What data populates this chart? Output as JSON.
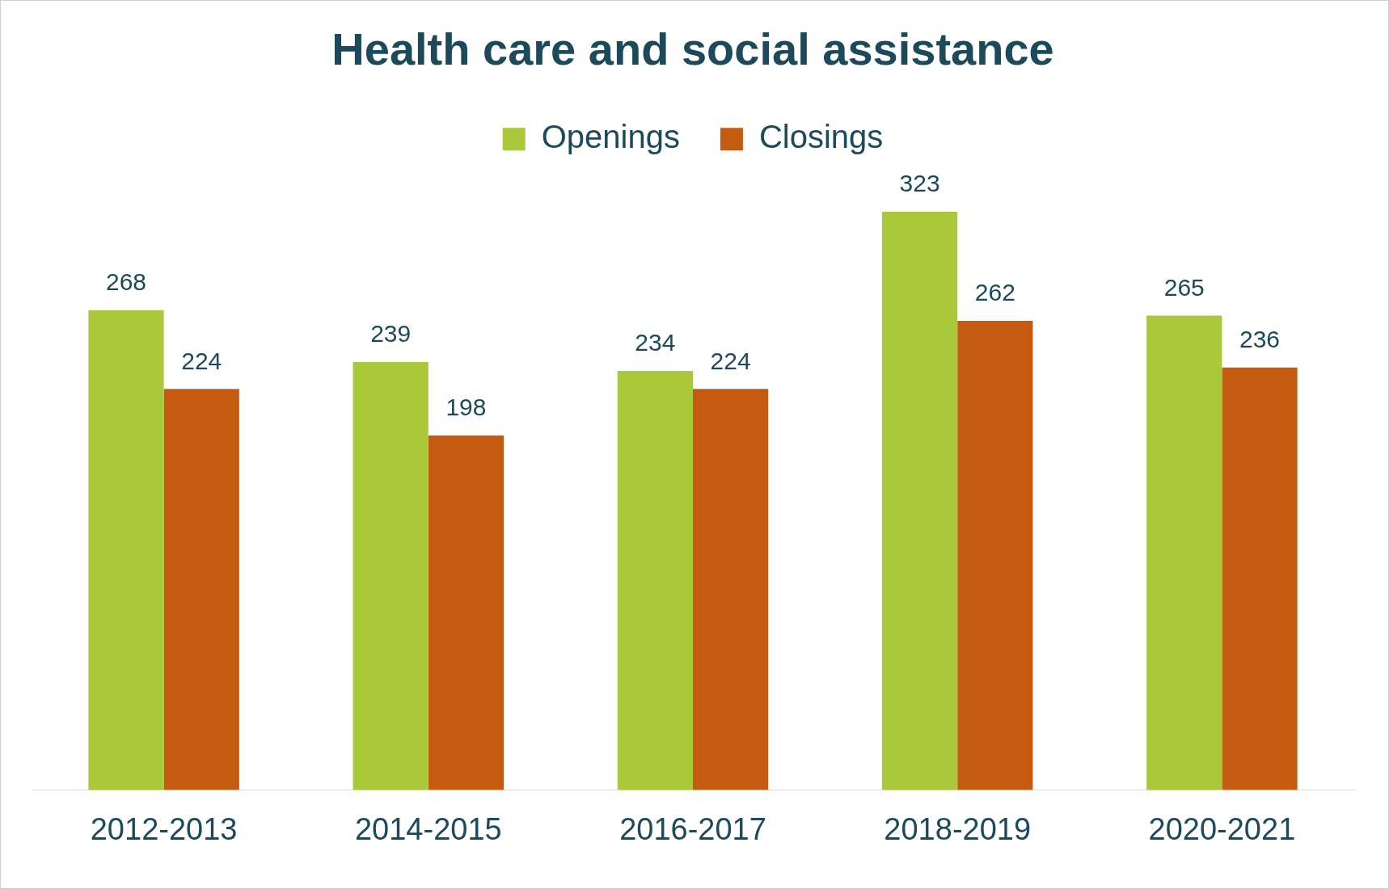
{
  "chart_data": {
    "type": "bar",
    "title": "Health care and social assistance",
    "categories": [
      "2012-2013",
      "2014-2015",
      "2016-2017",
      "2018-2019",
      "2020-2021"
    ],
    "series": [
      {
        "name": "Openings",
        "color": "#a9c83a",
        "values": [
          268,
          239,
          234,
          323,
          265
        ]
      },
      {
        "name": "Closings",
        "color": "#c55a11",
        "values": [
          224,
          198,
          224,
          262,
          236
        ]
      }
    ],
    "data_labels": true,
    "legend": "top",
    "grid": false,
    "tick_labels": "x"
  }
}
